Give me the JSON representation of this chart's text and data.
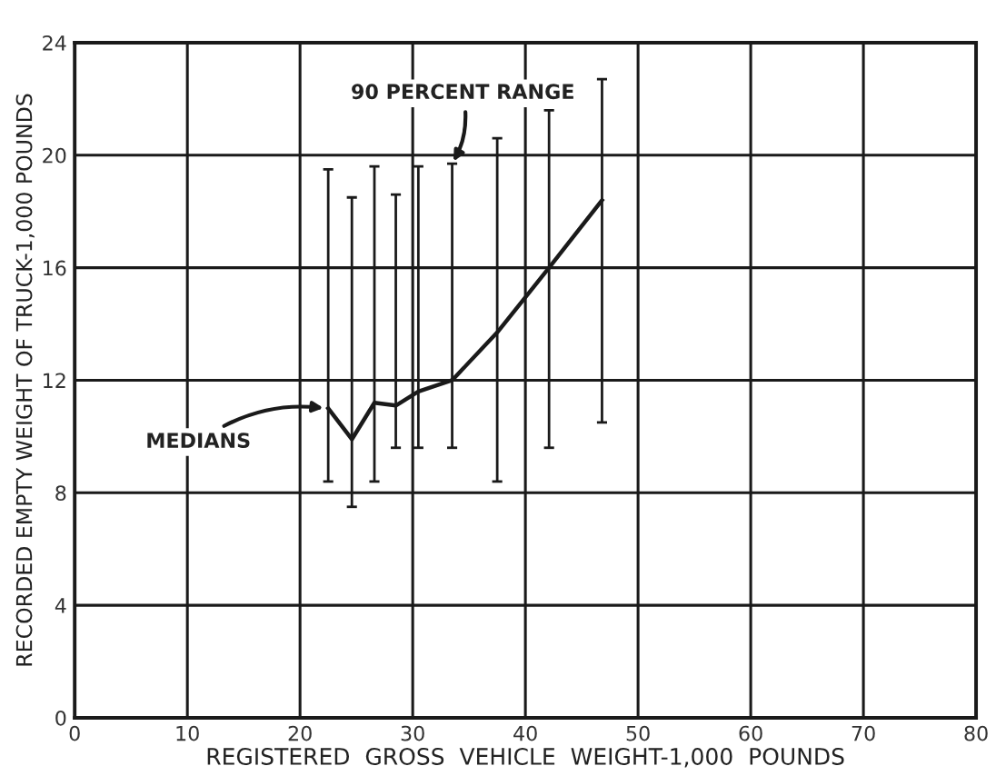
{
  "chart_data": {
    "type": "line",
    "xlabel": "REGISTERED  GROSS  VEHICLE  WEIGHT-1,000  POUNDS",
    "ylabel": "RECORDED EMPTY WEIGHT OF TRUCK-1,000 POUNDS",
    "x": [
      22.5,
      24.6,
      26.6,
      28.5,
      30.5,
      33.5,
      37.5,
      42.1,
      46.8
    ],
    "series": [
      {
        "color": "#1a1a1a",
        "values": [
          11.0,
          9.9,
          11.2,
          11.1,
          11.6,
          12.0,
          13.7,
          16.0,
          18.4
        ],
        "errors": [
          [
            8.4,
            19.5
          ],
          [
            7.5,
            18.5
          ],
          [
            8.4,
            19.6
          ],
          [
            9.6,
            18.6
          ],
          [
            9.6,
            19.6
          ],
          [
            9.6,
            19.7
          ],
          [
            8.4,
            20.6
          ],
          [
            9.6,
            21.6
          ],
          [
            10.5,
            22.7
          ]
        ]
      }
    ],
    "xlim": [
      0,
      80
    ],
    "ylim": [
      0,
      24
    ],
    "xticks": [
      0,
      10,
      20,
      30,
      40,
      50,
      60,
      70,
      80
    ],
    "yticks": [
      0,
      4,
      8,
      12,
      16,
      20,
      24
    ],
    "grid": true,
    "marker": "none",
    "line_style": "solid",
    "annotations": [
      {
        "text": "90 PERCENT RANGE",
        "x": 33.5,
        "y": 19.7
      },
      {
        "text": "MEDIANS",
        "x": 22.3,
        "y": 11.0
      }
    ]
  }
}
